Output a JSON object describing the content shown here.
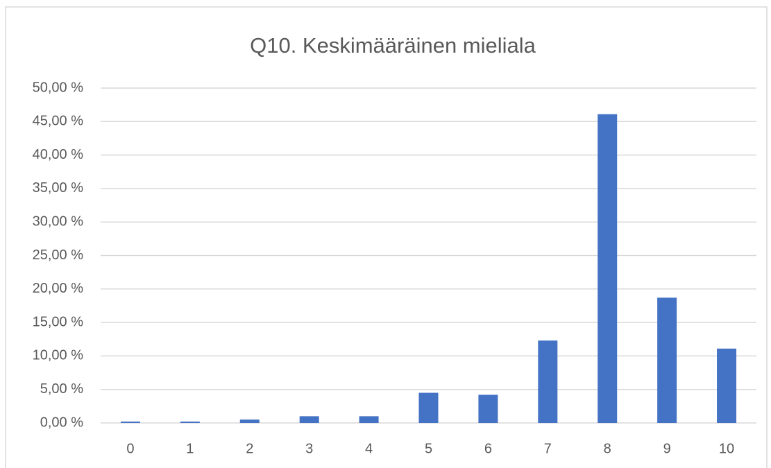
{
  "chart_data": {
    "type": "bar",
    "title": "Q10. Keskimääräinen mieliala",
    "categories": [
      "0",
      "1",
      "2",
      "3",
      "4",
      "5",
      "6",
      "7",
      "8",
      "9",
      "10"
    ],
    "values": [
      0.2,
      0.2,
      0.5,
      1.0,
      1.0,
      4.5,
      4.2,
      12.3,
      46.1,
      18.7,
      11.1
    ],
    "color": "#4472c4",
    "ylim": [
      0,
      50
    ],
    "yticks": [
      {
        "value": 0,
        "label": "0,00 %"
      },
      {
        "value": 5,
        "label": "5,00 %"
      },
      {
        "value": 10,
        "label": "10,00 %"
      },
      {
        "value": 15,
        "label": "15,00 %"
      },
      {
        "value": 20,
        "label": "20,00 %"
      },
      {
        "value": 25,
        "label": "25,00 %"
      },
      {
        "value": 30,
        "label": "30,00 %"
      },
      {
        "value": 35,
        "label": "35,00 %"
      },
      {
        "value": 40,
        "label": "40,00 %"
      },
      {
        "value": 45,
        "label": "45,00 %"
      },
      {
        "value": 50,
        "label": "50,00 %"
      }
    ],
    "grid": true
  }
}
